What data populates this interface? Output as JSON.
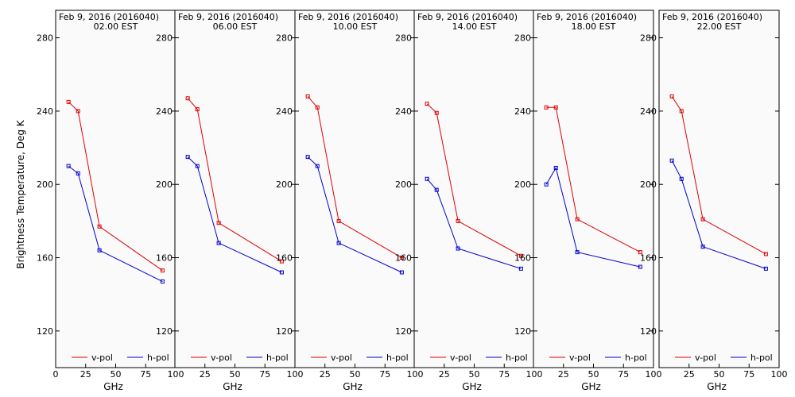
{
  "ylabel": "Brightness Temperature, Deg K",
  "xlabel": "GHz",
  "colors": {
    "v_pol": "#e00000",
    "h_pol": "#0000d0",
    "panel_bg": "#fafafa"
  },
  "chart_data": [
    {
      "type": "line",
      "title": "Feb  9, 2016 (2016040)",
      "subtitle": "02.00 EST",
      "xlim": [
        0,
        100
      ],
      "ylim": [
        100,
        295
      ],
      "grid": false,
      "legend_placement": "bottom",
      "x": [
        10.7,
        18.7,
        36.5,
        89.0
      ],
      "series": [
        {
          "name": "v-pol",
          "values": [
            245,
            240,
            177,
            153
          ]
        },
        {
          "name": "h-pol",
          "values": [
            210,
            206,
            164,
            147
          ]
        }
      ]
    },
    {
      "type": "line",
      "title": "Feb  9, 2016 (2016040)",
      "subtitle": "06.00 EST",
      "xlim": [
        0,
        100
      ],
      "ylim": [
        100,
        295
      ],
      "grid": false,
      "legend_placement": "bottom",
      "x": [
        10.7,
        18.7,
        36.5,
        89.0
      ],
      "series": [
        {
          "name": "v-pol",
          "values": [
            247,
            241,
            179,
            158
          ]
        },
        {
          "name": "h-pol",
          "values": [
            215,
            210,
            168,
            152
          ]
        }
      ]
    },
    {
      "type": "line",
      "title": "Feb  9, 2016 (2016040)",
      "subtitle": "10.00 EST",
      "xlim": [
        0,
        100
      ],
      "ylim": [
        100,
        295
      ],
      "grid": false,
      "legend_placement": "bottom",
      "x": [
        10.7,
        18.7,
        36.5,
        89.0
      ],
      "series": [
        {
          "name": "v-pol",
          "values": [
            248,
            242,
            180,
            160
          ]
        },
        {
          "name": "h-pol",
          "values": [
            215,
            210,
            168,
            152
          ]
        }
      ]
    },
    {
      "type": "line",
      "title": "Feb  9, 2016 (2016040)",
      "subtitle": "14.00 EST",
      "xlim": [
        0,
        100
      ],
      "ylim": [
        100,
        295
      ],
      "grid": false,
      "legend_placement": "bottom",
      "x": [
        10.7,
        18.7,
        36.5,
        89.0
      ],
      "series": [
        {
          "name": "v-pol",
          "values": [
            244,
            239,
            180,
            161
          ]
        },
        {
          "name": "h-pol",
          "values": [
            203,
            197,
            165,
            154
          ]
        }
      ]
    },
    {
      "type": "line",
      "title": "Feb  9, 2016 (2016040)",
      "subtitle": "18.00 EST",
      "xlim": [
        0,
        100
      ],
      "ylim": [
        100,
        295
      ],
      "grid": false,
      "legend_placement": "bottom",
      "x": [
        10.7,
        18.7,
        36.5,
        89.0
      ],
      "series": [
        {
          "name": "v-pol",
          "values": [
            242,
            242,
            181,
            163
          ]
        },
        {
          "name": "h-pol",
          "values": [
            200,
            209,
            163,
            155
          ]
        }
      ]
    },
    {
      "type": "line",
      "title": "Feb  9, 2016 (2016040)",
      "subtitle": "22.00 EST",
      "xlim": [
        0,
        100
      ],
      "ylim": [
        100,
        295
      ],
      "grid": false,
      "legend_placement": "bottom",
      "x": [
        10.7,
        18.7,
        36.5,
        89.0
      ],
      "series": [
        {
          "name": "v-pol",
          "values": [
            248,
            240,
            181,
            162
          ]
        },
        {
          "name": "h-pol",
          "values": [
            213,
            203,
            166,
            154
          ]
        }
      ]
    }
  ],
  "y_ticks": [
    120,
    160,
    200,
    240,
    280
  ],
  "x_ticks_first": [
    0,
    25,
    50,
    75,
    100
  ],
  "x_ticks_rest": [
    25,
    50,
    75,
    100
  ]
}
